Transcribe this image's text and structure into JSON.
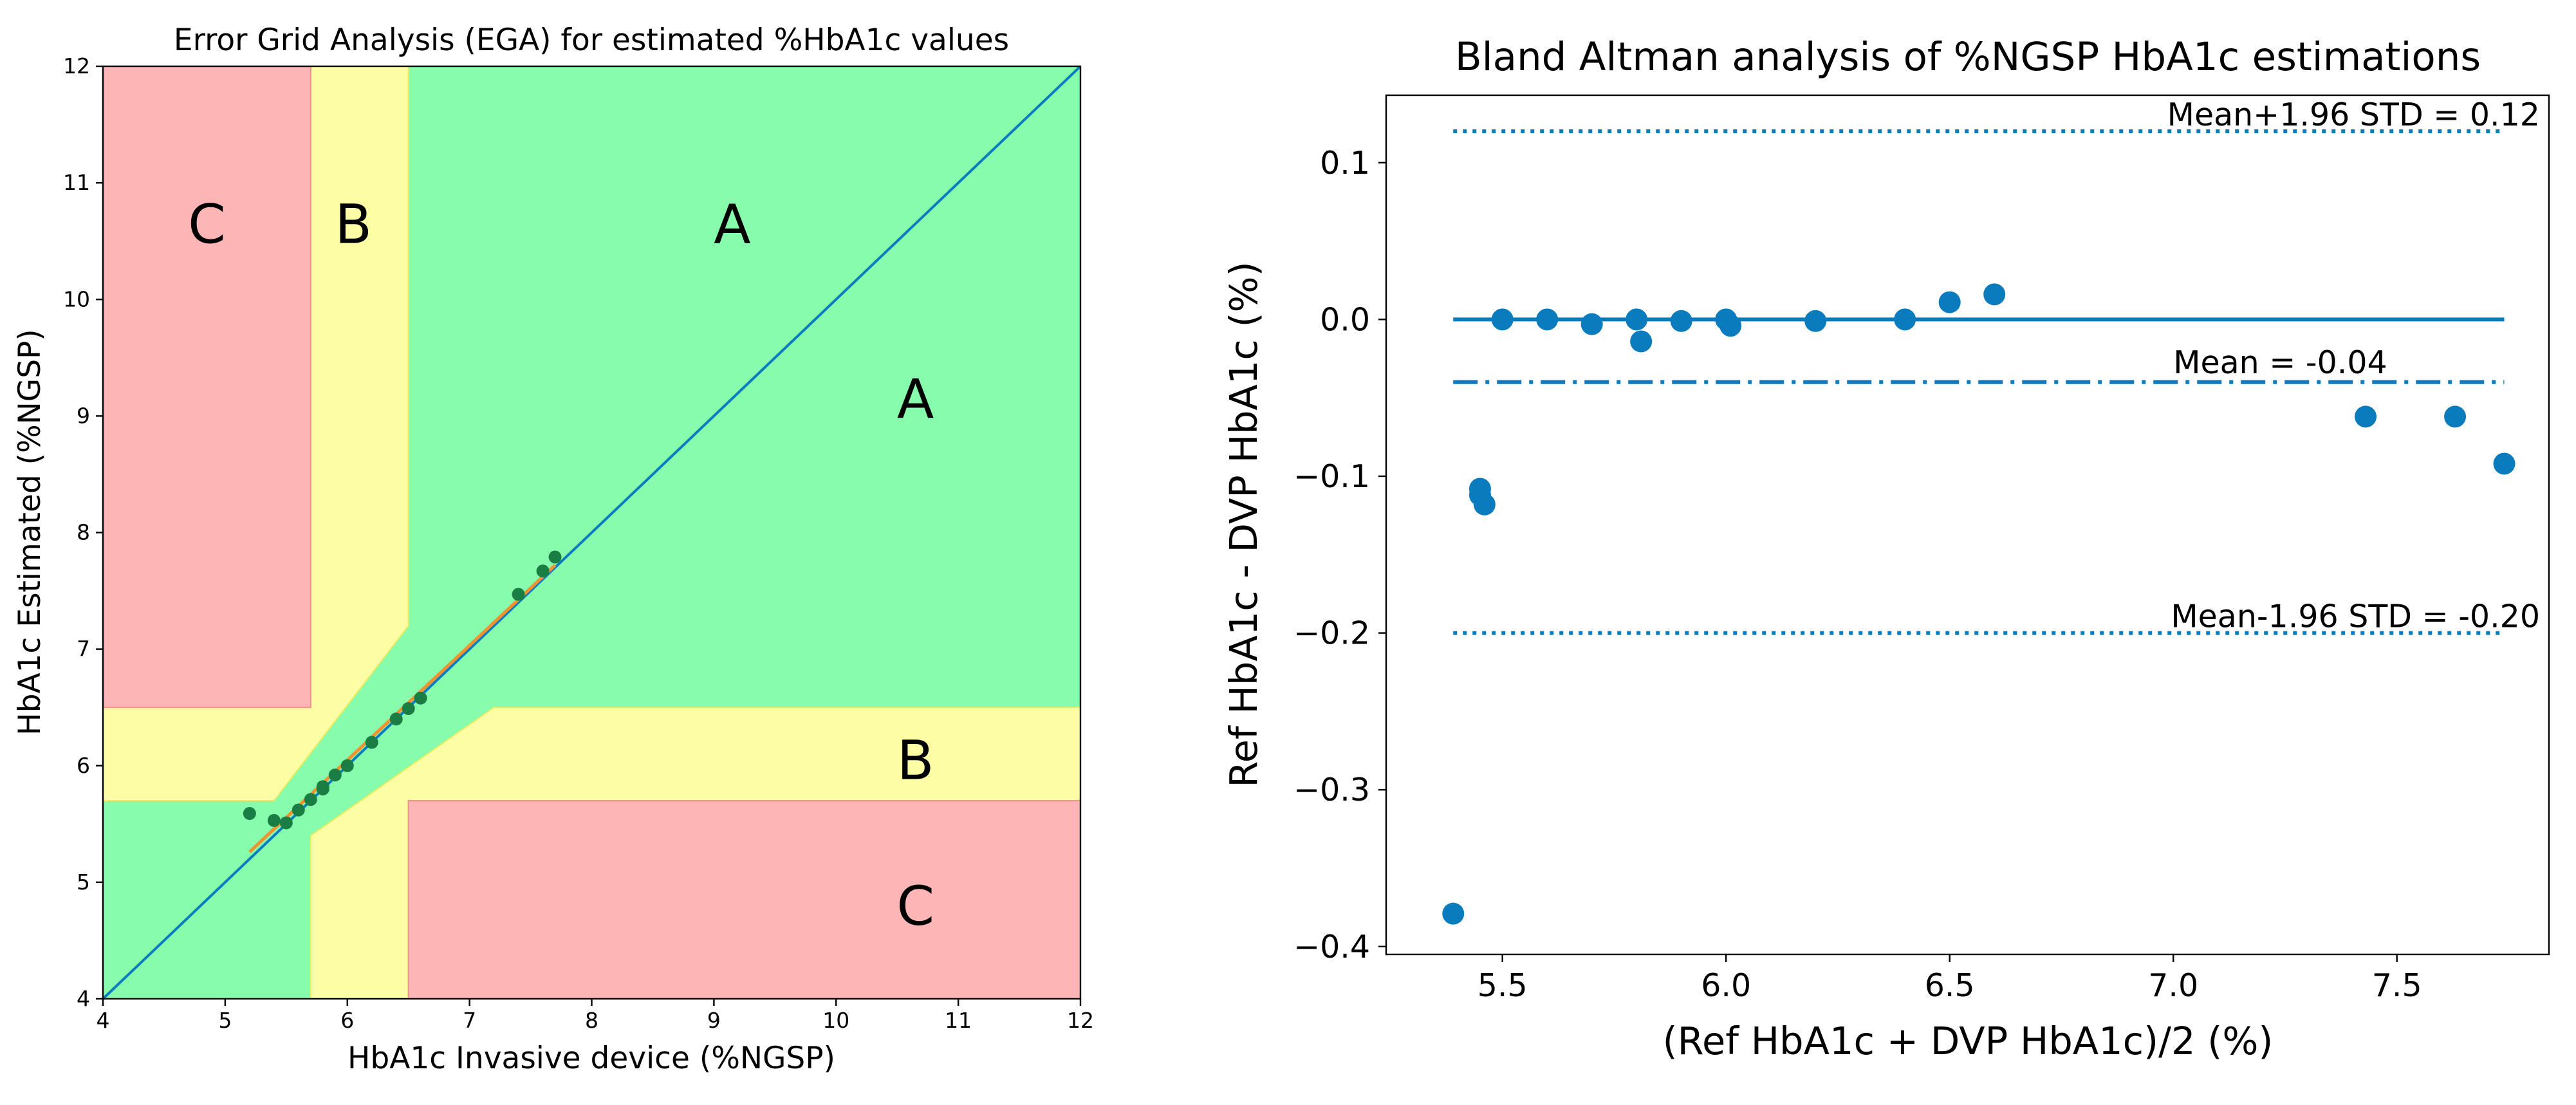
{
  "colors": {
    "zone_a": "#86fcac",
    "zone_b": "#fdfda6",
    "zone_c": "#fdb5b5",
    "identity_line": "#0b7dbf",
    "regression_line": "#f0922f",
    "ega_points": "#1a7d43",
    "ba_blue": "#0a7bbd"
  },
  "chart_data": [
    {
      "type": "scatter",
      "title": "Error Grid Analysis (EGA) for estimated %HbA1c values",
      "xlabel": "HbA1c Invasive device (%NGSP)",
      "ylabel": "HbA1c Estimated (%NGSP)",
      "xlim": [
        4,
        12
      ],
      "ylim": [
        4,
        12
      ],
      "xticks": [
        "4",
        "5",
        "6",
        "7",
        "8",
        "9",
        "10",
        "11",
        "12"
      ],
      "yticks": [
        "4",
        "5",
        "6",
        "7",
        "8",
        "9",
        "10",
        "11",
        "12"
      ],
      "zone_labels": [
        {
          "text": "C",
          "x": 4.85,
          "y": 10.65
        },
        {
          "text": "B",
          "x": 6.05,
          "y": 10.65
        },
        {
          "text": "A",
          "x": 9.15,
          "y": 10.65
        },
        {
          "text": "A",
          "x": 10.65,
          "y": 9.15
        },
        {
          "text": "B",
          "x": 10.65,
          "y": 6.05
        },
        {
          "text": "C",
          "x": 10.65,
          "y": 4.8
        }
      ],
      "regions": {
        "zone_a": [
          [
            4,
            4
          ],
          [
            4,
            5.7
          ],
          [
            5.4,
            5.7
          ],
          [
            6.5,
            7.2
          ],
          [
            6.5,
            12
          ],
          [
            12,
            12
          ],
          [
            12,
            6.5
          ],
          [
            7.2,
            6.5
          ],
          [
            5.7,
            5.4
          ],
          [
            5.7,
            4
          ]
        ],
        "zone_b": [
          [
            [
              5.7,
              12
            ],
            [
              6.5,
              12
            ],
            [
              6.5,
              7.2
            ],
            [
              5.4,
              5.7
            ],
            [
              4,
              5.7
            ],
            [
              4,
              6.5
            ],
            [
              5.7,
              6.5
            ]
          ],
          [
            [
              12,
              5.7
            ],
            [
              12,
              6.5
            ],
            [
              7.2,
              6.5
            ],
            [
              5.7,
              5.4
            ],
            [
              5.7,
              4
            ],
            [
              6.5,
              4
            ],
            [
              6.5,
              5.7
            ]
          ]
        ],
        "zone_c": [
          [
            [
              4,
              6.5
            ],
            [
              5.7,
              6.5
            ],
            [
              5.7,
              12
            ],
            [
              4,
              12
            ]
          ],
          [
            [
              6.5,
              4
            ],
            [
              12,
              4
            ],
            [
              12,
              5.7
            ],
            [
              6.5,
              5.7
            ]
          ]
        ]
      },
      "identity_line": [
        [
          4,
          4
        ],
        [
          12,
          12
        ]
      ],
      "regression_line": [
        [
          5.2,
          5.26
        ],
        [
          7.7,
          7.72
        ]
      ],
      "points": [
        {
          "x": 5.2,
          "y": 5.59
        },
        {
          "x": 5.4,
          "y": 5.53
        },
        {
          "x": 5.5,
          "y": 5.51
        },
        {
          "x": 5.6,
          "y": 5.62
        },
        {
          "x": 5.7,
          "y": 5.71
        },
        {
          "x": 5.8,
          "y": 5.8
        },
        {
          "x": 5.8,
          "y": 5.82
        },
        {
          "x": 5.9,
          "y": 5.92
        },
        {
          "x": 6.0,
          "y": 6.0
        },
        {
          "x": 6.2,
          "y": 6.2
        },
        {
          "x": 6.4,
          "y": 6.4
        },
        {
          "x": 6.5,
          "y": 6.49
        },
        {
          "x": 6.6,
          "y": 6.58
        },
        {
          "x": 7.4,
          "y": 7.47
        },
        {
          "x": 7.6,
          "y": 7.67
        },
        {
          "x": 7.7,
          "y": 7.79
        }
      ]
    },
    {
      "type": "scatter",
      "title": "Bland Altman analysis of %NGSP HbA1c estimations",
      "xlabel": "(Ref HbA1c + DVP HbA1c)/2 (%)",
      "ylabel": "Ref HbA1c - DVP HbA1c (%)",
      "xlim": [
        5.24,
        7.84
      ],
      "ylim": [
        -0.405,
        0.143
      ],
      "xticks": [
        {
          "value": 5.5,
          "label": "5.5"
        },
        {
          "value": 6.0,
          "label": "6.0"
        },
        {
          "value": 6.5,
          "label": "6.5"
        },
        {
          "value": 7.0,
          "label": "7.0"
        },
        {
          "value": 7.5,
          "label": "7.5"
        }
      ],
      "yticks": [
        {
          "value": 0.1,
          "label": "0.1"
        },
        {
          "value": 0.0,
          "label": "0.0"
        },
        {
          "value": -0.1,
          "label": "−0.1"
        },
        {
          "value": -0.2,
          "label": "−0.2"
        },
        {
          "value": -0.3,
          "label": "−0.3"
        },
        {
          "value": -0.4,
          "label": "−0.4"
        }
      ],
      "line_x_range": [
        5.39,
        7.74
      ],
      "zero_line": 0.0,
      "mean_line": {
        "value": -0.04,
        "label": "Mean = -0.04"
      },
      "upper_loa": {
        "value": 0.12,
        "label": "Mean+1.96 STD = 0.12"
      },
      "lower_loa": {
        "value": -0.2,
        "label": "Mean-1.96 STD = -0.20"
      },
      "points": [
        {
          "x": 5.39,
          "y": -0.379
        },
        {
          "x": 5.45,
          "y": -0.108
        },
        {
          "x": 5.45,
          "y": -0.112
        },
        {
          "x": 5.46,
          "y": -0.118
        },
        {
          "x": 5.5,
          "y": 0.0
        },
        {
          "x": 5.6,
          "y": 0.0
        },
        {
          "x": 5.7,
          "y": -0.003
        },
        {
          "x": 5.8,
          "y": 0.0
        },
        {
          "x": 5.81,
          "y": -0.014
        },
        {
          "x": 5.9,
          "y": -0.001
        },
        {
          "x": 6.0,
          "y": 0.0
        },
        {
          "x": 6.01,
          "y": -0.004
        },
        {
          "x": 6.2,
          "y": -0.001
        },
        {
          "x": 6.4,
          "y": 0.0
        },
        {
          "x": 6.5,
          "y": 0.011
        },
        {
          "x": 6.6,
          "y": 0.016
        },
        {
          "x": 7.43,
          "y": -0.062
        },
        {
          "x": 7.63,
          "y": -0.062
        },
        {
          "x": 7.74,
          "y": -0.092
        }
      ]
    }
  ]
}
